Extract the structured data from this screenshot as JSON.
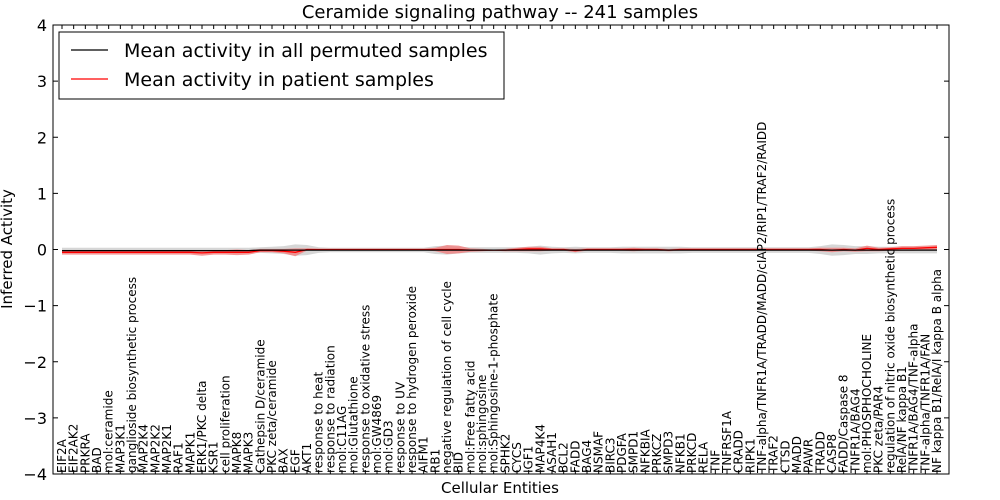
{
  "chart_data": {
    "type": "line",
    "title": "Ceramide signaling pathway -- 241 samples",
    "xlabel": "Cellular Entities",
    "ylabel": "Inferred Activity",
    "ylim": [
      -4,
      4
    ],
    "yticks": [
      -4,
      -3,
      -2,
      -1,
      0,
      1,
      2,
      3,
      4
    ],
    "ytick_labels": [
      "−4",
      "−3",
      "−2",
      "−1",
      "0",
      "1",
      "2",
      "3",
      "4"
    ],
    "legend_position": "top-left",
    "colors": {
      "permuted": "#000000",
      "patient": "#ff0000",
      "permuted_band": "#c8c8c8",
      "patient_band": "#f08080"
    },
    "categories": [
      "EIF2A",
      "EIF2AK2",
      "PRKRA",
      "BAD",
      "mol:ceramide",
      "MAP3K1",
      "ganglioside biosynthetic process",
      "MAP2K4",
      "MAP2K2",
      "MAP2K1",
      "RAF1",
      "MAPK1",
      "ERK1/PKC delta",
      "KSR1",
      "cell proliferation",
      "MAPK8",
      "MAPK3",
      "Cathepsin D/ceramide",
      "PKC zeta/ceramide",
      "BAX",
      "EGF",
      "AKT1",
      "response to heat",
      "response to radiation",
      "mol:C11AG",
      "mol:Glutathione",
      "response to oxidative stress",
      "mol:GW4869",
      "mol:GD3",
      "response to UV",
      "response to hydrogen peroxide",
      "AIFM1",
      "RB1",
      "negative regulation of cell cycle",
      "BID",
      "mol:Free fatty acid",
      "mol:sphingosine",
      "mol:Sphingosine-1-phosphate",
      "SPHK2",
      "CYCS",
      "IGF1",
      "MAP4K4",
      "ASAH1",
      "BCL2",
      "FADD",
      "BAG4",
      "NSMAF",
      "BIRC3",
      "PDGFA",
      "SMPD1",
      "NFKBIA",
      "PRKCZ",
      "SMPD3",
      "NFKB1",
      "PRKCD",
      "RELA",
      "TNF",
      "TNFRSF1A",
      "CRADD",
      "RIPK1",
      "TNF-alpha/TNFR1A/TRADD/MADD/cIAP2/RIP1/TRAF2/RAIDD",
      "TRAF2",
      "CTSD",
      "MADD",
      "PAWR",
      "TRADD",
      "CASP8",
      "FADD/Caspase 8",
      "TNFR1A/BAG4",
      "mol:PHOSPHOCHOLINE",
      "PKC zeta/PAR4",
      "regulation of nitric oxide biosynthetic process",
      "RelA/NF kappa B1",
      "TNFR1A/BAG4/TNF-alpha",
      "TNF-alpha/TNFR1A/FAN",
      "NF kappa B1/RelA/I kappa B alpha"
    ],
    "series": [
      {
        "name": "Mean activity in all permuted samples",
        "values": [
          -0.02,
          -0.02,
          -0.02,
          -0.02,
          -0.02,
          -0.02,
          -0.02,
          -0.02,
          -0.02,
          -0.02,
          -0.02,
          -0.02,
          -0.02,
          -0.02,
          -0.02,
          -0.02,
          -0.02,
          -0.01,
          -0.01,
          -0.01,
          -0.01,
          -0.01,
          -0.01,
          -0.01,
          -0.01,
          -0.01,
          -0.01,
          -0.01,
          -0.01,
          -0.01,
          -0.01,
          -0.01,
          -0.01,
          -0.01,
          -0.01,
          -0.01,
          -0.01,
          -0.01,
          -0.01,
          -0.01,
          -0.01,
          -0.01,
          -0.01,
          -0.01,
          -0.01,
          -0.01,
          -0.01,
          -0.01,
          -0.01,
          -0.01,
          -0.01,
          -0.01,
          -0.01,
          -0.01,
          -0.01,
          -0.01,
          -0.01,
          -0.01,
          -0.01,
          -0.01,
          -0.01,
          -0.01,
          -0.01,
          -0.01,
          -0.01,
          -0.01,
          -0.01,
          -0.01,
          -0.01,
          -0.01,
          -0.01,
          -0.01,
          -0.01,
          -0.01,
          -0.01,
          -0.01
        ],
        "spread": [
          0.05,
          0.05,
          0.05,
          0.05,
          0.05,
          0.05,
          0.05,
          0.05,
          0.05,
          0.05,
          0.05,
          0.05,
          0.05,
          0.05,
          0.05,
          0.05,
          0.05,
          0.05,
          0.06,
          0.07,
          0.1,
          0.09,
          0.05,
          0.04,
          0.04,
          0.04,
          0.04,
          0.04,
          0.04,
          0.04,
          0.04,
          0.04,
          0.07,
          0.08,
          0.06,
          0.05,
          0.05,
          0.05,
          0.05,
          0.05,
          0.06,
          0.08,
          0.06,
          0.05,
          0.06,
          0.05,
          0.05,
          0.05,
          0.06,
          0.06,
          0.06,
          0.06,
          0.06,
          0.06,
          0.05,
          0.05,
          0.05,
          0.05,
          0.05,
          0.05,
          0.05,
          0.05,
          0.05,
          0.05,
          0.05,
          0.07,
          0.1,
          0.09,
          0.07,
          0.07,
          0.06,
          0.06,
          0.06,
          0.06,
          0.06,
          0.06
        ]
      },
      {
        "name": "Mean activity in patient samples",
        "values": [
          -0.05,
          -0.05,
          -0.05,
          -0.05,
          -0.05,
          -0.05,
          -0.05,
          -0.05,
          -0.05,
          -0.05,
          -0.05,
          -0.05,
          -0.06,
          -0.05,
          -0.05,
          -0.05,
          -0.05,
          -0.02,
          -0.02,
          -0.03,
          -0.05,
          0.0,
          0.0,
          0.0,
          0.0,
          0.0,
          0.0,
          0.0,
          0.0,
          0.0,
          0.0,
          0.0,
          0.0,
          0.0,
          0.0,
          -0.01,
          -0.01,
          -0.01,
          -0.01,
          0.0,
          0.01,
          0.01,
          0.0,
          0.0,
          -0.02,
          0.0,
          0.0,
          0.0,
          0.0,
          0.0,
          0.0,
          0.0,
          -0.01,
          0.0,
          0.0,
          0.0,
          0.0,
          0.0,
          0.0,
          0.0,
          0.0,
          0.0,
          0.0,
          0.0,
          0.0,
          0.0,
          -0.01,
          0.0,
          -0.01,
          0.02,
          0.0,
          0.01,
          0.02,
          0.02,
          0.03,
          0.04
        ],
        "spread": [
          0.04,
          0.04,
          0.04,
          0.04,
          0.04,
          0.04,
          0.04,
          0.04,
          0.04,
          0.04,
          0.04,
          0.04,
          0.05,
          0.04,
          0.04,
          0.05,
          0.04,
          0.03,
          0.03,
          0.04,
          0.07,
          0.02,
          0.01,
          0.01,
          0.01,
          0.01,
          0.01,
          0.01,
          0.01,
          0.01,
          0.01,
          0.01,
          0.03,
          0.08,
          0.07,
          0.03,
          0.02,
          0.01,
          0.02,
          0.03,
          0.04,
          0.04,
          0.02,
          0.02,
          0.03,
          0.02,
          0.02,
          0.02,
          0.02,
          0.03,
          0.02,
          0.02,
          0.02,
          0.02,
          0.02,
          0.02,
          0.02,
          0.02,
          0.02,
          0.02,
          0.02,
          0.02,
          0.02,
          0.02,
          0.02,
          0.03,
          0.04,
          0.03,
          0.03,
          0.05,
          0.03,
          0.03,
          0.04,
          0.04,
          0.04,
          0.04
        ]
      }
    ]
  }
}
